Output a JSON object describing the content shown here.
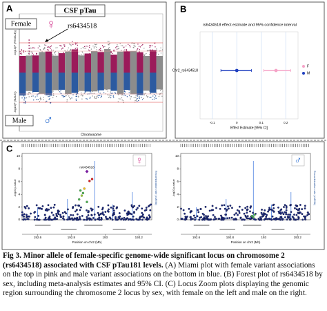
{
  "panels": {
    "a": {
      "label": "A",
      "title": "CSF pTau",
      "female": "Female",
      "male": "Male",
      "female_symbol": "♀",
      "male_symbol": "♂",
      "snp": "rs6434518",
      "x_label": "Chromosome",
      "y_label_top": "-log10(P (FEMALE))",
      "y_label_bottom": "-log10(P (MALE))"
    },
    "b": {
      "label": "B",
      "title": "rs6434518 effect estimate and 95% confidence interval",
      "row": "Chr2_rs6434518",
      "x_label": "Effect Estimate [95% CI]",
      "xlim": [
        -0.15,
        0.25
      ],
      "xticks": [
        -0.1,
        0,
        0.1,
        0.2
      ],
      "series": [
        {
          "name": "F",
          "color": "#f5a3c7",
          "estimate": 0.16,
          "ci": [
            0.11,
            0.22
          ]
        },
        {
          "name": "M",
          "color": "#1f3fbf",
          "estimate": 0,
          "ci": [
            -0.065,
            0.06
          ]
        }
      ]
    },
    "c": {
      "label": "C",
      "snp": "rs6434518",
      "female_symbol": "♀",
      "male_symbol": "♂",
      "y_label": "-log10 p-value",
      "y2_label": "Recombination rate (cM/Mb)",
      "x_label": "Position on chr2 (Mb)",
      "yticks": [
        0,
        2,
        4,
        6,
        8,
        10
      ],
      "xticks": [
        "192.6",
        "192.8",
        "193",
        "193.2"
      ]
    }
  },
  "caption": {
    "bold": "Fig 3. Minor allele of female-specific genome-wide significant locus on chromosome 2 (rs6434518) associated with CSF pTau181 levels.",
    "text": "(A) Miami plot with female variant associations on the top in pink and male variant associations on the bottom in blue. (B) Forest plot of rs6434518 by sex, including meta-analysis estimates and 95% CI. (C) Locus Zoom plots displaying the genomic region surrounding the chromosome 2 locus by sex, with female on the left and male on the right."
  }
}
